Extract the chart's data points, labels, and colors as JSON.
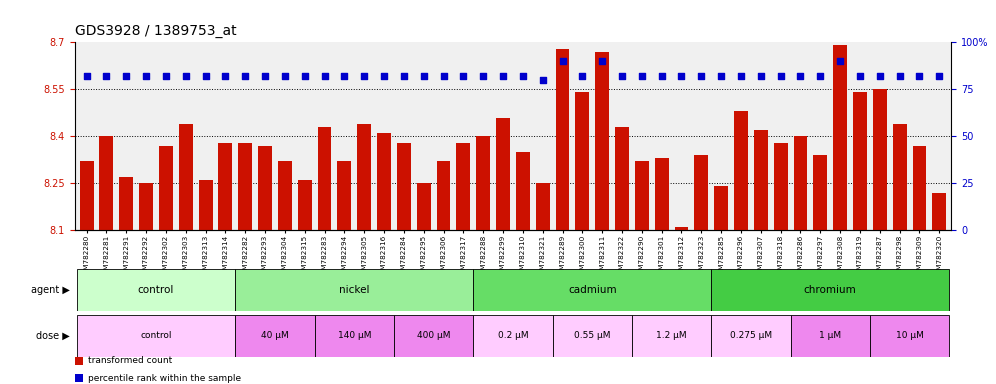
{
  "title": "GDS3928 / 1389753_at",
  "samples": [
    "GSM782280",
    "GSM782281",
    "GSM782291",
    "GSM782292",
    "GSM782302",
    "GSM782303",
    "GSM782313",
    "GSM782314",
    "GSM782282",
    "GSM782293",
    "GSM782304",
    "GSM782315",
    "GSM782283",
    "GSM782294",
    "GSM782305",
    "GSM782316",
    "GSM782284",
    "GSM782295",
    "GSM782306",
    "GSM782317",
    "GSM782288",
    "GSM782299",
    "GSM782310",
    "GSM782321",
    "GSM782289",
    "GSM782300",
    "GSM782311",
    "GSM782322",
    "GSM782290",
    "GSM782301",
    "GSM782312",
    "GSM782323",
    "GSM782285",
    "GSM782296",
    "GSM782307",
    "GSM782318",
    "GSM782286",
    "GSM782297",
    "GSM782308",
    "GSM782319",
    "GSM782287",
    "GSM782298",
    "GSM782309",
    "GSM782320"
  ],
  "bar_values": [
    8.32,
    8.4,
    8.27,
    8.25,
    8.37,
    8.44,
    8.26,
    8.38,
    8.38,
    8.37,
    8.32,
    8.26,
    8.43,
    8.32,
    8.44,
    8.41,
    8.38,
    8.25,
    8.32,
    8.38,
    8.4,
    8.46,
    8.35,
    8.25,
    8.68,
    8.54,
    8.67,
    8.43,
    8.32,
    8.33,
    8.11,
    8.34,
    8.24,
    8.48,
    8.42,
    8.38,
    8.4,
    8.34,
    8.69,
    8.54,
    8.55,
    8.44,
    8.37,
    8.22
  ],
  "percentile_values": [
    82,
    82,
    82,
    82,
    82,
    82,
    82,
    82,
    82,
    82,
    82,
    82,
    82,
    82,
    82,
    82,
    82,
    82,
    82,
    82,
    82,
    82,
    82,
    80,
    90,
    82,
    90,
    82,
    82,
    82,
    82,
    82,
    82,
    82,
    82,
    82,
    82,
    82,
    90,
    82,
    82,
    82,
    82,
    82
  ],
  "ymin": 8.1,
  "ymax": 8.7,
  "yticks": [
    8.1,
    8.25,
    8.4,
    8.55,
    8.7
  ],
  "ytick_labels": [
    "8.1",
    "8.25",
    "8.4",
    "8.55",
    "8.7"
  ],
  "right_yticks": [
    0,
    25,
    50,
    75,
    100
  ],
  "right_ytick_labels": [
    "0",
    "25",
    "50",
    "75",
    "100%"
  ],
  "hlines": [
    8.25,
    8.4,
    8.55
  ],
  "bar_color": "#cc1100",
  "percentile_color": "#0000cc",
  "agent_groups": [
    {
      "label": "control",
      "start": 0,
      "end": 8,
      "color": "#ccffcc"
    },
    {
      "label": "nickel",
      "start": 8,
      "end": 20,
      "color": "#99ee99"
    },
    {
      "label": "cadmium",
      "start": 20,
      "end": 32,
      "color": "#66dd66"
    },
    {
      "label": "chromium",
      "start": 32,
      "end": 44,
      "color": "#44cc44"
    }
  ],
  "dose_groups": [
    {
      "label": "control",
      "start": 0,
      "end": 8,
      "color": "#ffccff"
    },
    {
      "label": "40 μM",
      "start": 8,
      "end": 12,
      "color": "#ee88ee"
    },
    {
      "label": "140 μM",
      "start": 12,
      "end": 16,
      "color": "#ee88ee"
    },
    {
      "label": "400 μM",
      "start": 16,
      "end": 20,
      "color": "#ee88ee"
    },
    {
      "label": "0.2 μM",
      "start": 20,
      "end": 24,
      "color": "#ffccff"
    },
    {
      "label": "0.55 μM",
      "start": 24,
      "end": 28,
      "color": "#ffccff"
    },
    {
      "label": "1.2 μM",
      "start": 28,
      "end": 32,
      "color": "#ffccff"
    },
    {
      "label": "0.275 μM",
      "start": 32,
      "end": 36,
      "color": "#ffccff"
    },
    {
      "label": "1 μM",
      "start": 36,
      "end": 40,
      "color": "#ee88ee"
    },
    {
      "label": "10 μM",
      "start": 40,
      "end": 44,
      "color": "#ee88ee"
    }
  ],
  "legend_items": [
    {
      "label": "transformed count",
      "color": "#cc1100"
    },
    {
      "label": "percentile rank within the sample",
      "color": "#0000cc"
    }
  ],
  "bg_color": "#ffffff",
  "plot_bg_color": "#f0f0f0",
  "axis_label_color_left": "#cc1100",
  "axis_label_color_right": "#0000cc",
  "title_fontsize": 10,
  "tick_fontsize": 7,
  "bar_width": 0.7
}
